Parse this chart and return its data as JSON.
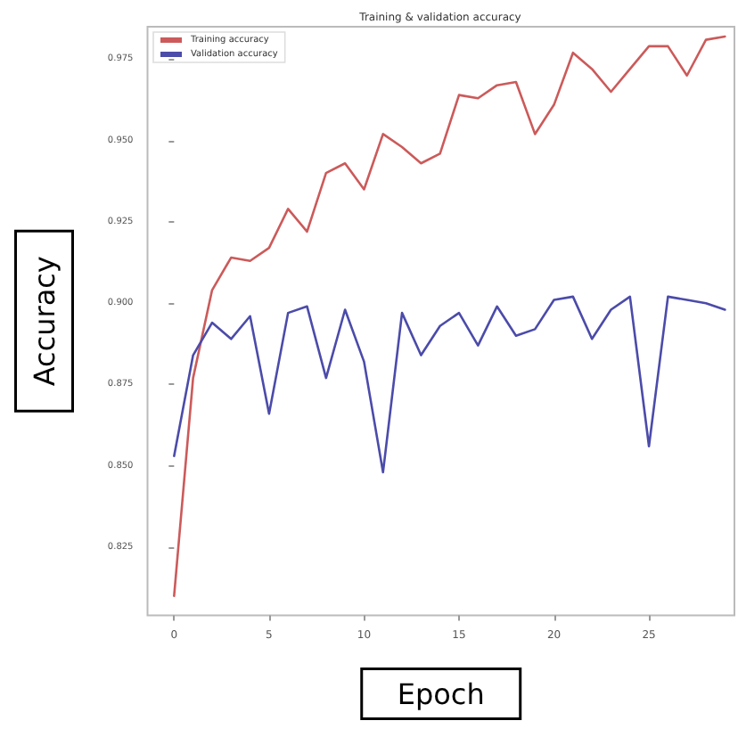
{
  "chart_data": {
    "type": "line",
    "title": "Training & validation accuracy",
    "xlabel": "Epoch",
    "ylabel": "Accuracy",
    "x": [
      0,
      1,
      2,
      3,
      4,
      5,
      6,
      7,
      8,
      9,
      10,
      11,
      12,
      13,
      14,
      15,
      16,
      17,
      18,
      19,
      20,
      21,
      22,
      23,
      24,
      25,
      26,
      27,
      28,
      29
    ],
    "series": [
      {
        "name": "Training accuracy",
        "color": "#cc5a5a",
        "values": [
          0.81,
          0.877,
          0.904,
          0.914,
          0.913,
          0.917,
          0.929,
          0.922,
          0.94,
          0.943,
          0.935,
          0.952,
          0.948,
          0.943,
          0.946,
          0.964,
          0.963,
          0.967,
          0.968,
          0.952,
          0.961,
          0.977,
          0.972,
          0.965,
          0.972,
          0.979,
          0.979,
          0.97,
          0.981,
          0.982
        ]
      },
      {
        "name": "Validation accuracy",
        "color": "#4b4baa",
        "values": [
          0.853,
          0.884,
          0.894,
          0.889,
          0.896,
          0.866,
          0.897,
          0.899,
          0.877,
          0.898,
          0.882,
          0.848,
          0.897,
          0.884,
          0.893,
          0.897,
          0.887,
          0.899,
          0.89,
          0.892,
          0.901,
          0.902,
          0.889,
          0.898,
          0.902,
          0.856,
          0.902,
          0.901,
          0.9,
          0.898
        ]
      }
    ],
    "xlim": [
      -1.4,
      29.5
    ],
    "xticks": [
      0,
      5,
      10,
      15,
      20,
      25
    ],
    "ylim": [
      0.804,
      0.985
    ],
    "yticks": [
      0.825,
      {
        "value": 0.85,
        "label": "0.850"
      },
      0.875,
      {
        "value": 0.9,
        "label": "0.900"
      },
      0.925,
      {
        "value": 0.95,
        "label": "0.950"
      },
      0.975
    ],
    "legend": "top left",
    "grid": false,
    "marker": "none",
    "line_style": "solid"
  }
}
